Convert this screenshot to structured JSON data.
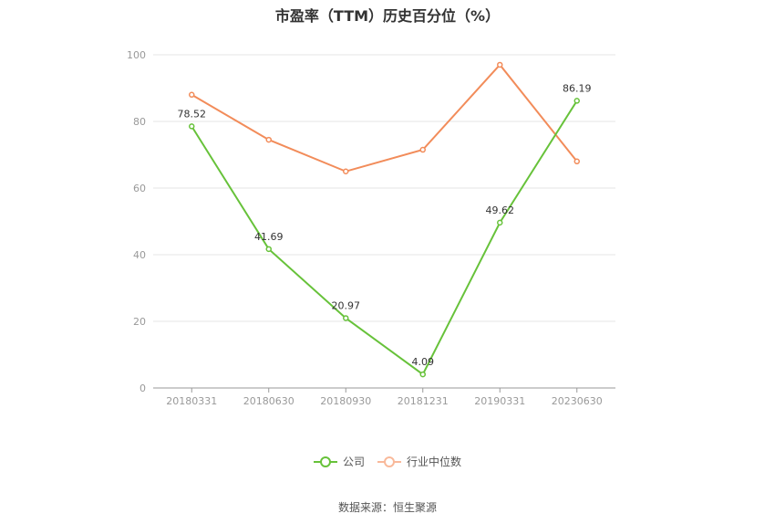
{
  "chart_data": {
    "type": "line",
    "title": "市盈率（TTM）历史百分位（%）",
    "categories": [
      "20180331",
      "20180630",
      "20180930",
      "20181231",
      "20190331",
      "20230630"
    ],
    "series": [
      {
        "name": "公司",
        "color": "#67c23a",
        "values": [
          78.52,
          41.69,
          20.97,
          4.09,
          49.62,
          86.19
        ],
        "labels": [
          "78.52",
          "41.69",
          "20.97",
          "4.09",
          "49.62",
          "86.19"
        ]
      },
      {
        "name": "行业中位数",
        "color": "#f28c5a",
        "values": [
          88,
          74.5,
          65,
          71.5,
          97,
          68
        ]
      }
    ],
    "ylim": [
      0,
      100
    ],
    "yticks": [
      0,
      20,
      40,
      60,
      80,
      100
    ],
    "grid": true,
    "legend": "bottom-center",
    "source": "数据来源：恒生聚源"
  }
}
